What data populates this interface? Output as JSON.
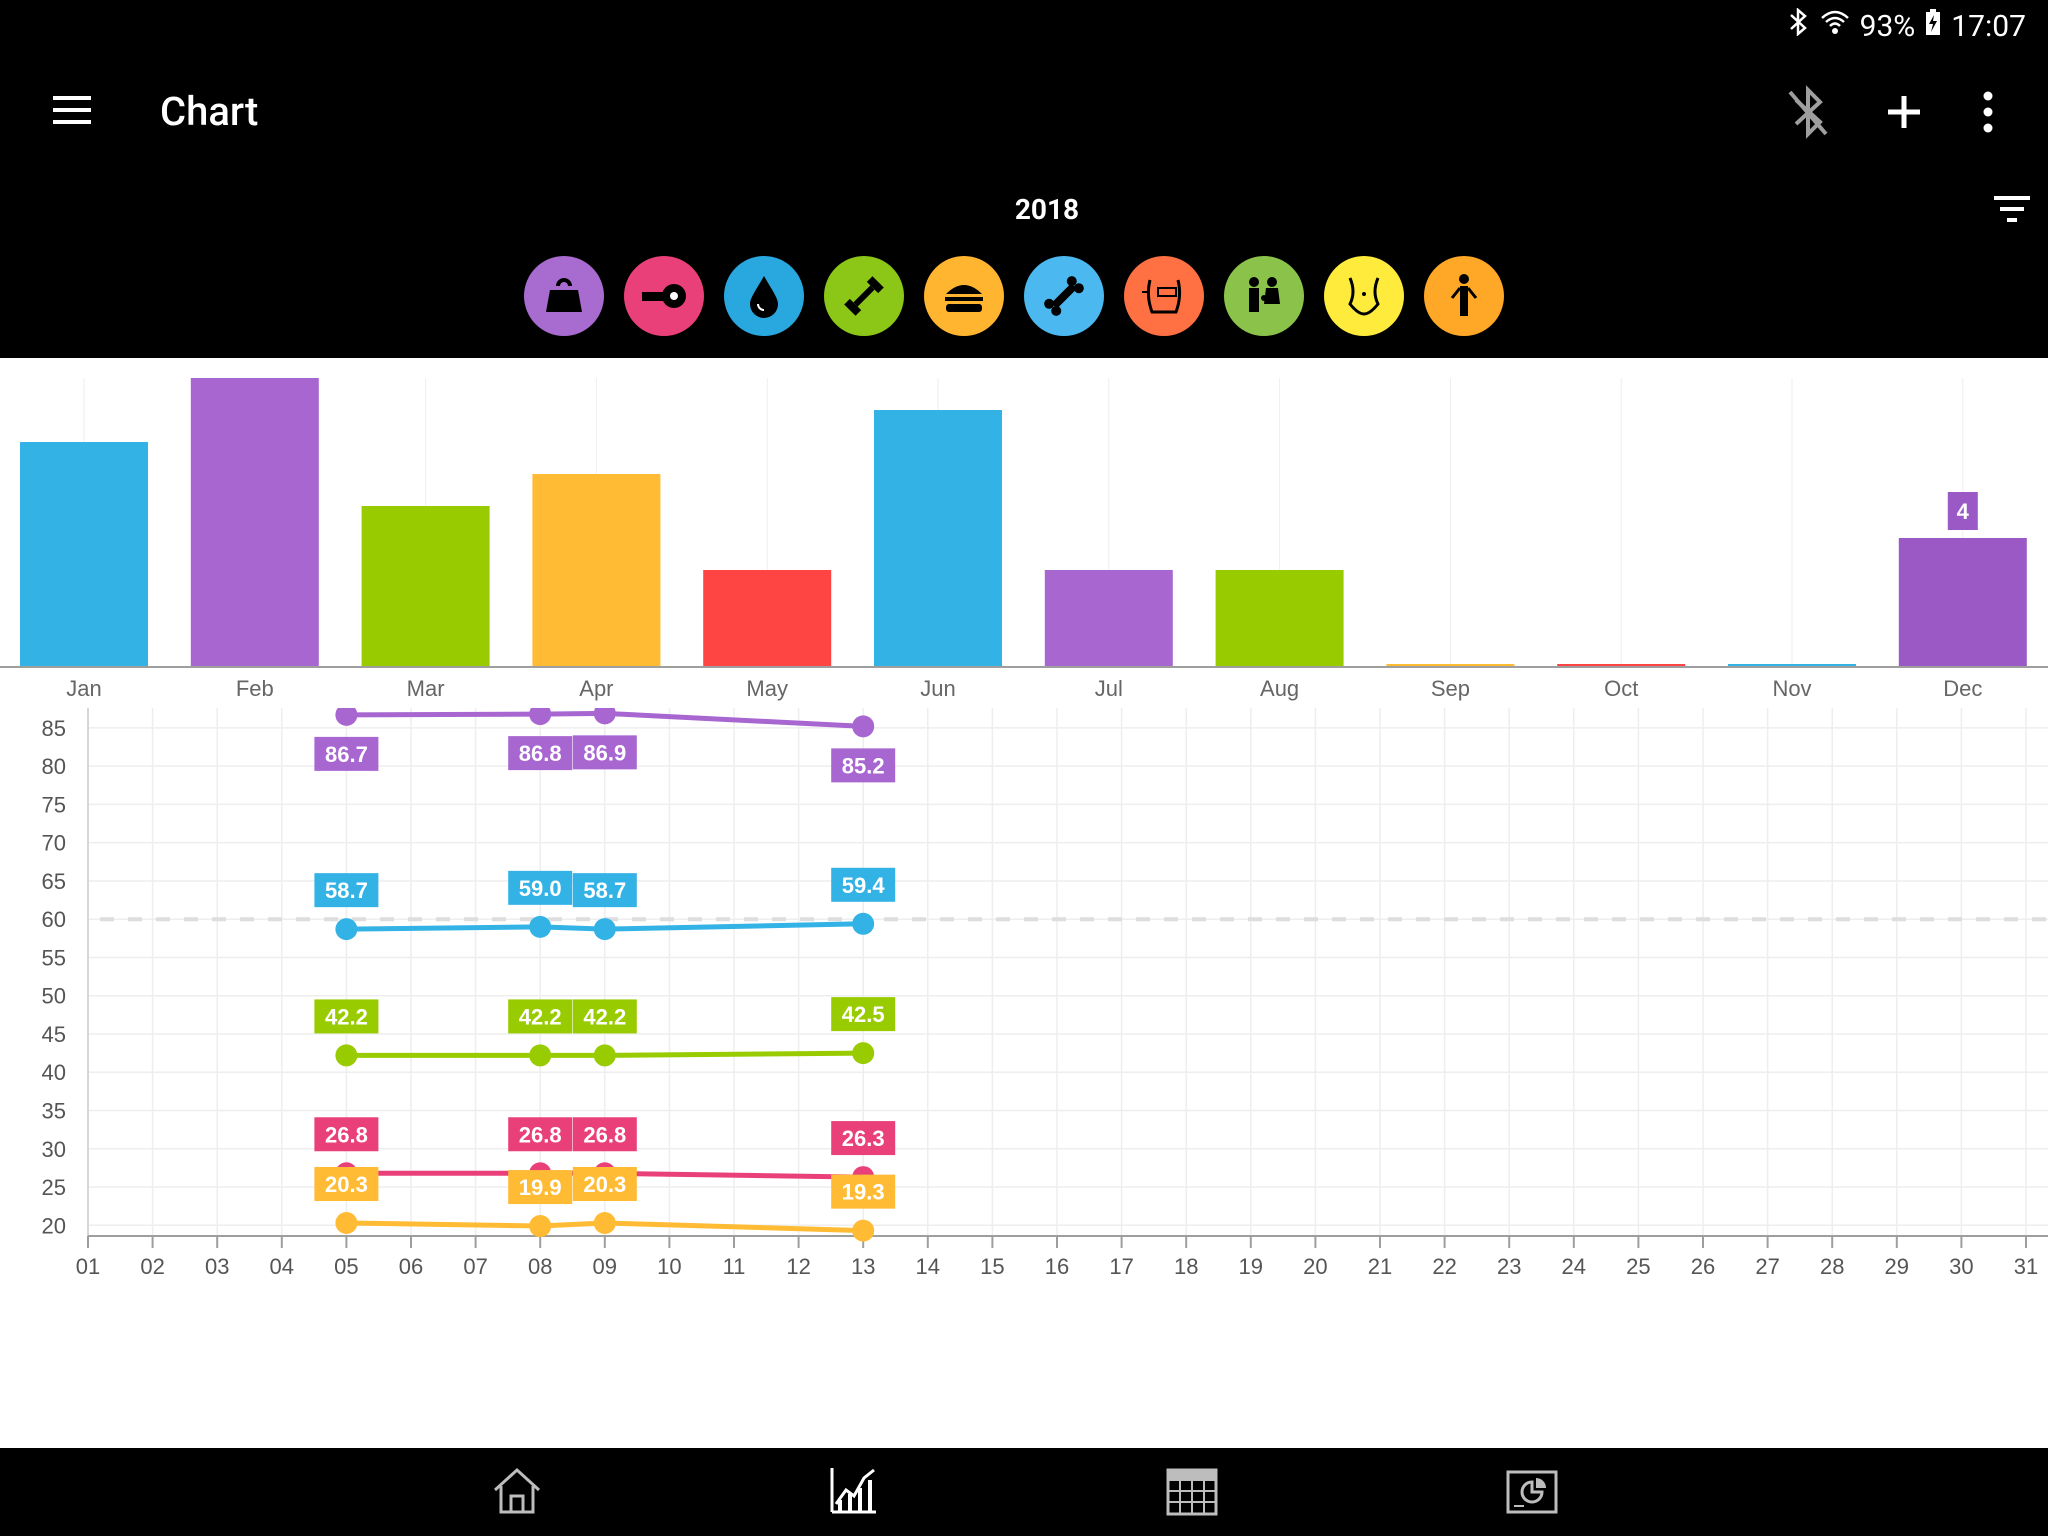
{
  "status": {
    "battery": "93%",
    "time": "17:07"
  },
  "appbar": {
    "title": "Chart"
  },
  "year": "2018",
  "categories": [
    {
      "name": "weight-icon",
      "color": "#A86BD0"
    },
    {
      "name": "tape-measure-icon",
      "color": "#E9407A"
    },
    {
      "name": "water-drop-icon",
      "color": "#29A8E0"
    },
    {
      "name": "muscle-dumbbell-icon",
      "color": "#8CC617"
    },
    {
      "name": "burger-icon",
      "color": "#FFB530"
    },
    {
      "name": "bone-icon",
      "color": "#4CB8F0"
    },
    {
      "name": "visceral-fat-icon",
      "color": "#FF7043"
    },
    {
      "name": "family-icon",
      "color": "#8BC34A"
    },
    {
      "name": "waist-icon",
      "color": "#FFEB3B"
    },
    {
      "name": "body-icon",
      "color": "#FFA726"
    }
  ],
  "chart_data": [
    {
      "type": "bar",
      "categories": [
        "Jan",
        "Feb",
        "Mar",
        "Apr",
        "May",
        "Jun",
        "Jul",
        "Aug",
        "Sep",
        "Oct",
        "Nov",
        "Dec"
      ],
      "values": [
        7,
        9,
        5,
        6,
        3,
        8,
        3,
        3,
        0,
        0,
        0,
        4
      ],
      "colors": [
        "#33B2E5",
        "#A866D1",
        "#99CC00",
        "#FFBB33",
        "#FF4444",
        "#33B2E5",
        "#A866D1",
        "#99CC00",
        "#FFBB33",
        "#FF4444",
        "#33B2E5",
        "#9B59C6"
      ],
      "ylim": [
        0,
        9
      ],
      "data_labels": [
        {
          "category": "Dec",
          "text": "4"
        }
      ]
    },
    {
      "type": "line",
      "x": [
        "05",
        "08",
        "09",
        "13"
      ],
      "xticks": [
        "01",
        "02",
        "03",
        "04",
        "05",
        "06",
        "07",
        "08",
        "09",
        "10",
        "11",
        "12",
        "13",
        "14",
        "15",
        "16",
        "17",
        "18",
        "19",
        "20",
        "21",
        "22",
        "23",
        "24",
        "25",
        "26",
        "27",
        "28",
        "29",
        "30",
        "31"
      ],
      "yticks": [
        85,
        80,
        75,
        70,
        65,
        60,
        55,
        50,
        45,
        40,
        35,
        30,
        25,
        20
      ],
      "ylim": [
        18.6,
        87.6
      ],
      "xlim": [
        1,
        31
      ],
      "reference_line": 60,
      "series": [
        {
          "color": "#A866D1",
          "values": [
            86.7,
            86.8,
            86.9,
            85.2
          ],
          "labels": [
            "86.7",
            "86.8",
            "86.9",
            "85.2"
          ],
          "label_pos": "below"
        },
        {
          "color": "#33B2E5",
          "values": [
            58.7,
            59.0,
            58.7,
            59.4
          ],
          "labels": [
            "58.7",
            "59.0",
            "58.7",
            "59.4"
          ],
          "label_pos": "above"
        },
        {
          "color": "#99CC00",
          "values": [
            42.2,
            42.2,
            42.2,
            42.5
          ],
          "labels": [
            "42.2",
            "42.2",
            "42.2",
            "42.5"
          ],
          "label_pos": "above"
        },
        {
          "color": "#E9407A",
          "values": [
            26.8,
            26.8,
            26.8,
            26.3
          ],
          "labels": [
            "26.8",
            "26.8",
            "26.8",
            "26.3"
          ],
          "label_pos": "above"
        },
        {
          "color": "#FFBB33",
          "values": [
            20.3,
            19.9,
            20.3,
            19.3
          ],
          "labels": [
            "20.3",
            "19.9",
            "20.3",
            "19.3"
          ],
          "label_pos": "above"
        }
      ]
    }
  ]
}
